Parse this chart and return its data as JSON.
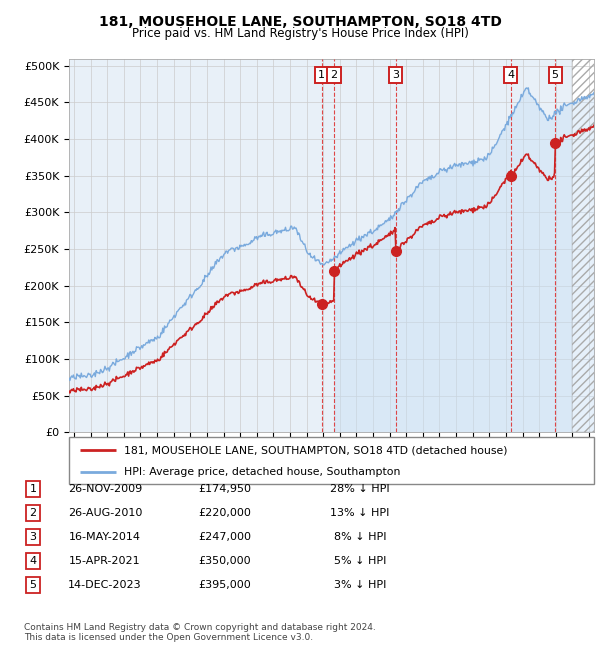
{
  "title": "181, MOUSEHOLE LANE, SOUTHAMPTON, SO18 4TD",
  "subtitle": "Price paid vs. HM Land Registry's House Price Index (HPI)",
  "yticks": [
    0,
    50000,
    100000,
    150000,
    200000,
    250000,
    300000,
    350000,
    400000,
    450000,
    500000
  ],
  "ytick_labels": [
    "£0",
    "£50K",
    "£100K",
    "£150K",
    "£200K",
    "£250K",
    "£300K",
    "£350K",
    "£400K",
    "£450K",
    "£500K"
  ],
  "hpi_color": "#7aaadd",
  "price_color": "#cc2222",
  "grid_color": "#cccccc",
  "chart_bg": "#e8f0f8",
  "vline_color": "#dd3333",
  "sales": [
    {
      "num": 1,
      "date": "26-NOV-2009",
      "price": 174950,
      "pct": "28%",
      "x_year": 2009.9
    },
    {
      "num": 2,
      "date": "26-AUG-2010",
      "price": 220000,
      "pct": "13%",
      "x_year": 2010.65
    },
    {
      "num": 3,
      "date": "16-MAY-2014",
      "price": 247000,
      "pct": "8%",
      "x_year": 2014.37
    },
    {
      "num": 4,
      "date": "15-APR-2021",
      "price": 350000,
      "pct": "5%",
      "x_year": 2021.29
    },
    {
      "num": 5,
      "date": "14-DEC-2023",
      "price": 395000,
      "pct": "3%",
      "x_year": 2023.96
    }
  ],
  "legend_line1": "181, MOUSEHOLE LANE, SOUTHAMPTON, SO18 4TD (detached house)",
  "legend_line2": "HPI: Average price, detached house, Southampton",
  "footnote": "Contains HM Land Registry data © Crown copyright and database right 2024.\nThis data is licensed under the Open Government Licence v3.0.",
  "table_rows": [
    [
      "1",
      "26-NOV-2009",
      "£174,950",
      "28% ↓ HPI"
    ],
    [
      "2",
      "26-AUG-2010",
      "£220,000",
      "13% ↓ HPI"
    ],
    [
      "3",
      "16-MAY-2014",
      "£247,000",
      "8% ↓ HPI"
    ],
    [
      "4",
      "15-APR-2021",
      "£350,000",
      "5% ↓ HPI"
    ],
    [
      "5",
      "14-DEC-2023",
      "£395,000",
      "3% ↓ HPI"
    ]
  ],
  "xlim_start": 1994.7,
  "xlim_end": 2026.3,
  "ylim_top": 500000,
  "future_start": 2025.0,
  "hpi_shade_start": 2010.65
}
